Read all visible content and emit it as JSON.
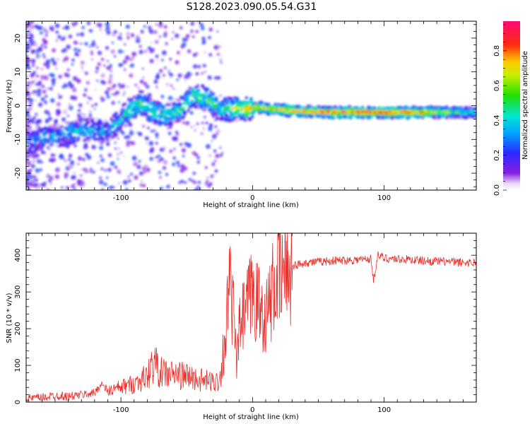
{
  "figure_title": "S128.2023.090.05.54.G31",
  "colors": {
    "snr_line": "#e8302c",
    "axis": "#000000",
    "colormap": [
      "#7a00c8",
      "#4a1aff",
      "#0050ff",
      "#00c8ff",
      "#00e080",
      "#2ad800",
      "#f0ff00",
      "#ff9000",
      "#ff1a1a",
      "#ff0a6a"
    ]
  },
  "chart_data": [
    {
      "type": "heatmap",
      "title": "S128.2023.090.05.54.G31",
      "xlabel": "Height of straight line (km)",
      "ylabel": "Frequency (Hz)",
      "xlim": [
        -172,
        170
      ],
      "ylim": [
        -25,
        25
      ],
      "xticks": [
        "-100",
        "0",
        "100"
      ],
      "xtick_values": [
        -100,
        0,
        100
      ],
      "yticks": [
        "20",
        "10",
        "0",
        "-10",
        "-20"
      ],
      "ytick_values": [
        20,
        10,
        0,
        -10,
        -20
      ],
      "grid": false,
      "colorbar": {
        "label": "Normalized spectral amplitude",
        "range": [
          0,
          1
        ],
        "ticks": [
          "0.0",
          "0.2",
          "0.4",
          "0.6",
          "0.8"
        ],
        "tick_values": [
          0.0,
          0.2,
          0.4,
          0.6,
          0.8
        ]
      },
      "ridge": {
        "description_values": "dominant frequency vs height",
        "x": [
          -170,
          -150,
          -130,
          -110,
          -95,
          -85,
          -75,
          -65,
          -55,
          -45,
          -35,
          -25,
          -15,
          -5,
          5,
          15,
          30,
          60,
          90,
          120,
          150,
          170
        ],
        "y": [
          -10,
          -9,
          -7,
          -8,
          -2,
          1,
          -2,
          -3,
          -1,
          3,
          2,
          -1,
          -1,
          -1,
          -0.5,
          -1,
          -1.5,
          -2,
          -2,
          -2,
          -2,
          -2
        ],
        "amplitude": [
          0.3,
          0.35,
          0.4,
          0.35,
          0.45,
          0.5,
          0.45,
          0.45,
          0.5,
          0.5,
          0.55,
          0.45,
          0.6,
          0.7,
          0.75,
          0.7,
          0.8,
          0.85,
          0.9,
          0.85,
          0.6,
          0.4
        ]
      }
    },
    {
      "type": "line",
      "xlabel": "Height of straight line (km)",
      "ylabel": "SNR (10 * v/v)",
      "xlim": [
        -172,
        170
      ],
      "ylim": [
        0,
        460
      ],
      "xticks": [
        "-100",
        "0",
        "100"
      ],
      "xtick_values": [
        -100,
        0,
        100
      ],
      "yticks": [
        "0",
        "100",
        "200",
        "300",
        "400"
      ],
      "ytick_values": [
        0,
        100,
        200,
        300,
        400
      ],
      "grid": false,
      "series": [
        {
          "x": [
            -172,
            -160,
            -150,
            -140,
            -130,
            -120,
            -115,
            -110,
            -100,
            -90,
            -80,
            -75,
            -70,
            -60,
            -50,
            -40,
            -30,
            -25,
            -20,
            -18,
            -15,
            -12,
            -10,
            -5,
            0,
            5,
            10,
            15,
            20,
            25,
            30,
            40,
            50,
            60,
            70,
            80,
            90,
            92,
            95,
            100,
            110,
            120,
            130,
            140,
            150,
            160,
            170
          ],
          "y": [
            10,
            12,
            18,
            15,
            20,
            25,
            50,
            30,
            40,
            50,
            70,
            110,
            80,
            75,
            70,
            60,
            55,
            60,
            200,
            320,
            260,
            100,
            200,
            250,
            300,
            260,
            230,
            300,
            340,
            360,
            370,
            380,
            382,
            385,
            386,
            388,
            390,
            330,
            400,
            392,
            390,
            388,
            385,
            383,
            382,
            380,
            380
          ]
        }
      ]
    }
  ]
}
